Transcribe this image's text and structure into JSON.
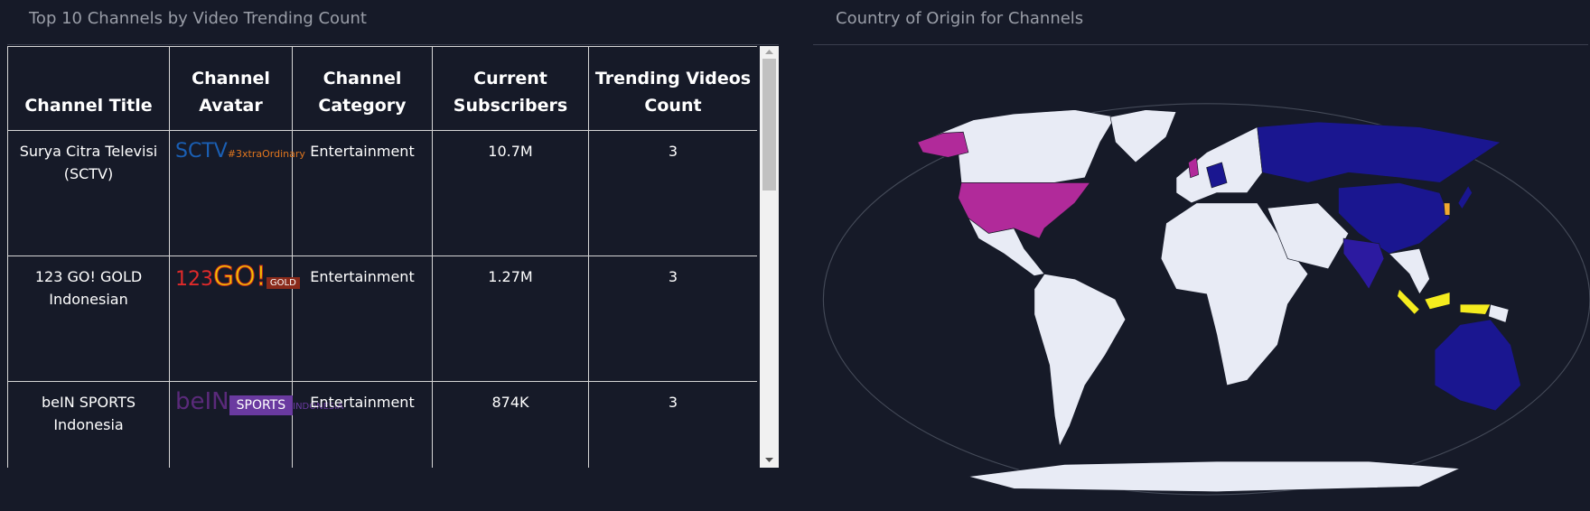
{
  "table_panel": {
    "title": "Top 10 Channels by Video Trending Count",
    "headers": [
      "Channel Title",
      "Channel Avatar",
      "Channel Category",
      "Current Subscribers",
      "Trending Videos Count"
    ],
    "rows": [
      {
        "title": "Surya Citra Televisi (SCTV)",
        "avatar": [
          "SCTV",
          "#3xtraOrdinary"
        ],
        "category": "Entertainment",
        "subscribers": "10.7M",
        "count": 3
      },
      {
        "title": "123 GO! GOLD Indonesian",
        "avatar": [
          "123",
          "GO!",
          "GOLD"
        ],
        "category": "Entertainment",
        "subscribers": "1.27M",
        "count": 3
      },
      {
        "title": "beIN SPORTS Indonesia",
        "avatar": [
          "beIN",
          "SPORTS",
          "INDONESIA"
        ],
        "category": "Entertainment",
        "subscribers": "874K",
        "count": 3
      }
    ]
  },
  "map_panel": {
    "title": "Country of Origin for Channels"
  }
}
